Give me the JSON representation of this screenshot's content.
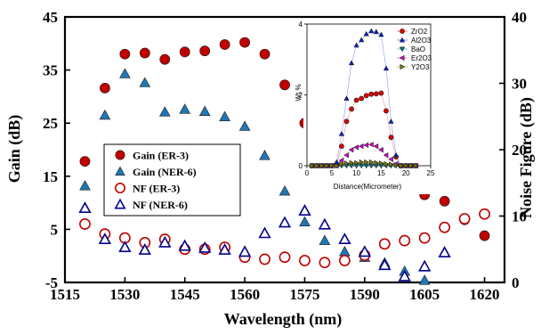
{
  "chart_data": [
    {
      "type": "scatter",
      "xlabel": "Wavelength (nm)",
      "ylabel": "Gain (dB)",
      "y2label": "Noise Figure (dB)",
      "xlim": [
        1515,
        1625
      ],
      "ylim": [
        -5,
        45
      ],
      "y2lim": [
        0,
        40
      ],
      "xticks": [
        "1515",
        "1530",
        "1545",
        "1560",
        "1575",
        "1590",
        "1605",
        "1620"
      ],
      "yticks": [
        "-5",
        "5",
        "15",
        "25",
        "35",
        "45"
      ],
      "y2ticks": [
        "0",
        "10",
        "20",
        "30",
        "40"
      ],
      "legend_position": "center-left",
      "series": [
        {
          "name": "Gain (ER-3)",
          "marker": "filled-circle",
          "color": "#c00000",
          "axis": "left",
          "x": [
            1520,
            1525,
            1530,
            1535,
            1540,
            1545,
            1550,
            1555,
            1560,
            1565,
            1570,
            1575,
            1580,
            1585,
            1590,
            1595,
            1600,
            1605,
            1610,
            1615,
            1620
          ],
          "y": [
            17.8,
            31.6,
            38.0,
            38.2,
            37.0,
            38.4,
            38.6,
            39.8,
            40.2,
            38.0,
            32.2,
            25.0,
            24.0,
            22.0,
            21.0,
            16.0,
            13.0,
            11.5,
            10.3,
            6.8,
            3.8
          ]
        },
        {
          "name": "Gain (NER-6)",
          "marker": "filled-triangle",
          "color": "#1f77b4",
          "axis": "left",
          "x": [
            1520,
            1525,
            1530,
            1535,
            1540,
            1545,
            1550,
            1555,
            1560,
            1565,
            1570,
            1575,
            1580,
            1585,
            1590,
            1595,
            1600,
            1605
          ],
          "y": [
            13.2,
            26.5,
            34.3,
            32.6,
            27.1,
            27.6,
            27.2,
            26.2,
            24.4,
            18.9,
            12.2,
            6.4,
            2.9,
            0.8,
            -0.3,
            -1.3,
            -2.9,
            -4.6
          ]
        },
        {
          "name": "NF (ER-3)",
          "marker": "open-circle",
          "color": "#c00000",
          "axis": "right",
          "x": [
            1520,
            1525,
            1530,
            1535,
            1540,
            1545,
            1550,
            1555,
            1560,
            1565,
            1570,
            1575,
            1580,
            1585,
            1590,
            1595,
            1600,
            1605,
            1610,
            1615,
            1620
          ],
          "y": [
            8.8,
            7.3,
            6.7,
            6.0,
            6.5,
            5.0,
            5.0,
            5.3,
            3.8,
            3.5,
            3.8,
            3.3,
            3.0,
            3.3,
            4.1,
            5.8,
            6.3,
            6.7,
            8.3,
            9.6,
            10.3
          ]
        },
        {
          "name": "NF (NER-6)",
          "marker": "open-triangle",
          "color": "#00008b",
          "axis": "right",
          "x": [
            1520,
            1525,
            1530,
            1535,
            1540,
            1545,
            1550,
            1555,
            1560,
            1565,
            1570,
            1575,
            1580,
            1585,
            1590,
            1595,
            1600,
            1605,
            1610
          ],
          "y": [
            11.2,
            6.5,
            5.3,
            4.9,
            6.0,
            5.5,
            5.2,
            4.9,
            4.6,
            7.4,
            9.0,
            10.8,
            8.7,
            6.5,
            4.6,
            2.6,
            0.9,
            2.4,
            4.5
          ]
        }
      ]
    },
    {
      "type": "line",
      "xlabel": "Distance(Micrometer)",
      "ylabel": "Wt %",
      "xlim": [
        0,
        25
      ],
      "ylim": [
        0,
        4
      ],
      "xticks": [
        "0",
        "5",
        "10",
        "15",
        "20",
        "25"
      ],
      "yticks": [
        "0",
        "2",
        "4"
      ],
      "legend_position": "top-right",
      "x": [
        1,
        2,
        3,
        4,
        5,
        6,
        7,
        8,
        9,
        10,
        11,
        12,
        13,
        14,
        15,
        16,
        17,
        18,
        19,
        20,
        21,
        22
      ],
      "series": [
        {
          "name": "ZrO2",
          "marker": "filled-circle",
          "color": "#e00000",
          "y": [
            0,
            0,
            0,
            0,
            0,
            0.05,
            0.55,
            1.25,
            1.6,
            1.85,
            1.9,
            1.98,
            2.02,
            2.03,
            2.05,
            1.55,
            0.8,
            0.25,
            0,
            0,
            0,
            0
          ]
        },
        {
          "name": "Al2O3",
          "marker": "filled-triangle",
          "color": "#0020e0",
          "y": [
            0,
            0,
            0,
            0,
            0,
            0.1,
            0.9,
            1.9,
            2.9,
            3.4,
            3.55,
            3.72,
            3.8,
            3.78,
            3.7,
            2.75,
            1.25,
            0.3,
            0,
            0,
            0,
            0
          ]
        },
        {
          "name": "BaO",
          "marker": "filled-triangle-down",
          "color": "#008080",
          "y": [
            0,
            0,
            0,
            0,
            0,
            0,
            0,
            0,
            0,
            0,
            0,
            0,
            0,
            0,
            0,
            0,
            0,
            0,
            0,
            0,
            0,
            0
          ]
        },
        {
          "name": "Er2O3",
          "marker": "filled-triangle-left",
          "color": "#e000e0",
          "y": [
            0,
            0,
            0,
            0,
            0,
            0,
            0.15,
            0.3,
            0.45,
            0.52,
            0.55,
            0.58,
            0.6,
            0.55,
            0.45,
            0.3,
            0.18,
            0.05,
            0,
            0,
            0,
            0
          ]
        },
        {
          "name": "Y2O3",
          "marker": "filled-triangle-right",
          "color": "#808000",
          "y": [
            0,
            0,
            0,
            0,
            0,
            0,
            0.05,
            0.07,
            0.08,
            0.08,
            0.1,
            0.1,
            0.1,
            0.08,
            0.07,
            0.05,
            0.04,
            0.02,
            0,
            0,
            0,
            0
          ]
        }
      ]
    }
  ]
}
